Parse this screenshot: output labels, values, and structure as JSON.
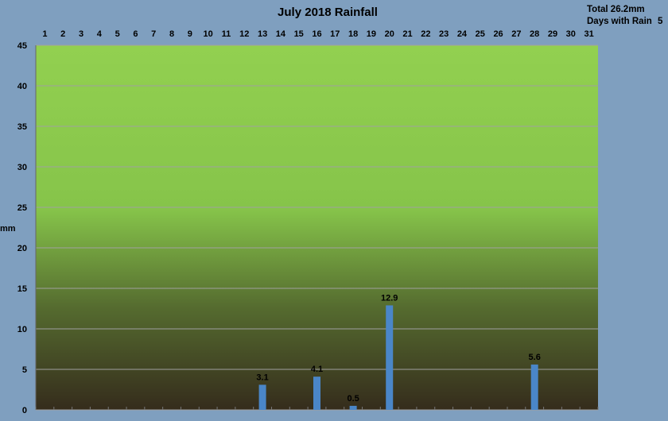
{
  "summary": {
    "total_label": "Total 26.2mm",
    "days_label": "Days with Rain",
    "days_value": "5"
  },
  "chart_data": {
    "type": "bar",
    "title": "July 2018 Rainfall",
    "ylabel": "mm",
    "xlabel": "",
    "ylim": [
      0,
      45
    ],
    "y_ticks": [
      0,
      5,
      10,
      15,
      20,
      25,
      30,
      35,
      40,
      45
    ],
    "categories": [
      "1",
      "2",
      "3",
      "4",
      "5",
      "6",
      "7",
      "8",
      "9",
      "10",
      "11",
      "12",
      "13",
      "14",
      "15",
      "16",
      "17",
      "18",
      "19",
      "20",
      "21",
      "22",
      "23",
      "24",
      "25",
      "26",
      "27",
      "28",
      "29",
      "30",
      "31"
    ],
    "values": [
      0,
      0,
      0,
      0,
      0,
      0,
      0,
      0,
      0,
      0,
      0,
      0,
      3.1,
      0,
      0,
      4.1,
      0,
      0.5,
      0,
      12.9,
      0,
      0,
      0,
      0,
      0,
      0,
      0,
      5.6,
      0,
      0,
      0
    ],
    "data_labels": {
      "13": "3.1",
      "16": "4.1",
      "18": "0.5",
      "20": "12.9",
      "28": "5.6"
    },
    "x_axis_position": "top",
    "grid": true,
    "colors": {
      "background": "#7f9fbf",
      "plot_top": "#92d050",
      "plot_bottom": "#3a3020",
      "bar": "#4a86c8",
      "grid": "#a0a0a0"
    }
  }
}
